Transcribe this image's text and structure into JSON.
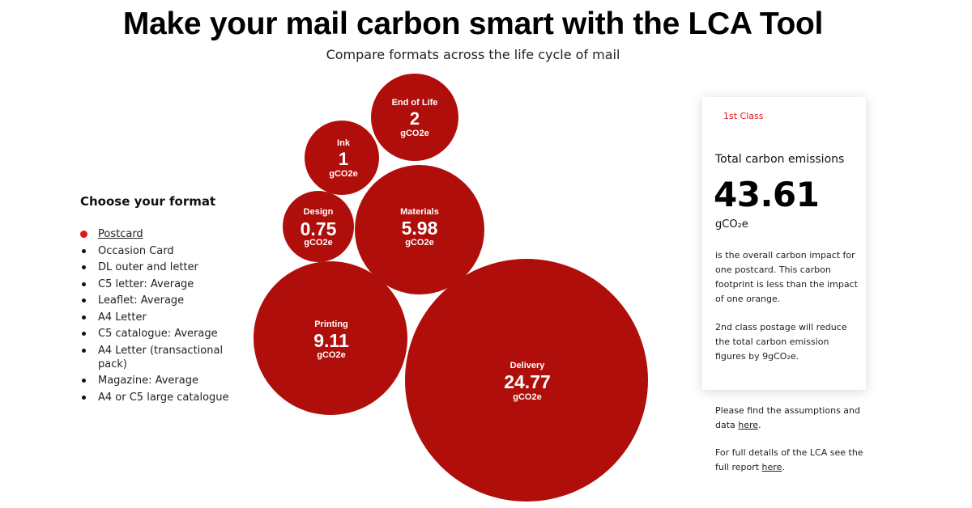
{
  "header": {
    "title": "Make your mail carbon smart with the LCA Tool",
    "subtitle": "Compare formats across the life cycle of mail"
  },
  "formats": {
    "heading": "Choose your format",
    "selected_index": 0,
    "items": [
      "Postcard",
      "Occasion Card",
      "DL outer and letter",
      "C5 letter: Average",
      "Leaflet: Average",
      "A4 Letter",
      "C5 catalogue: Average",
      "A4 Letter (transactional pack)",
      "Magazine: Average",
      "A4 or C5 large catalogue"
    ]
  },
  "bubbles": {
    "unit": "gCO2e",
    "color": "#b00e0a",
    "items": [
      {
        "label": "End of Life",
        "value": "2"
      },
      {
        "label": "Ink",
        "value": "1"
      },
      {
        "label": "Design",
        "value": "0.75"
      },
      {
        "label": "Materials",
        "value": "5.98"
      },
      {
        "label": "Printing",
        "value": "9.11"
      },
      {
        "label": "Delivery",
        "value": "24.77"
      }
    ]
  },
  "summary": {
    "postage_class": "1st Class",
    "total_label": "Total carbon emissions",
    "total_value": "43.61",
    "total_unit": "gCO₂e",
    "description": "is the overall carbon impact for one postcard. This carbon footprint is less than the impact of one orange.",
    "note": "2nd class postage will reduce the total carbon emission figures by 9gCO₂e.",
    "accent_color": "#e0161b"
  },
  "links": {
    "assumptions_text": "Please find the assumptions and data ",
    "assumptions_link": "here",
    "assumptions_end": ".",
    "report_text": "For full details of the LCA see the full report ",
    "report_link": "here",
    "report_end": "."
  }
}
